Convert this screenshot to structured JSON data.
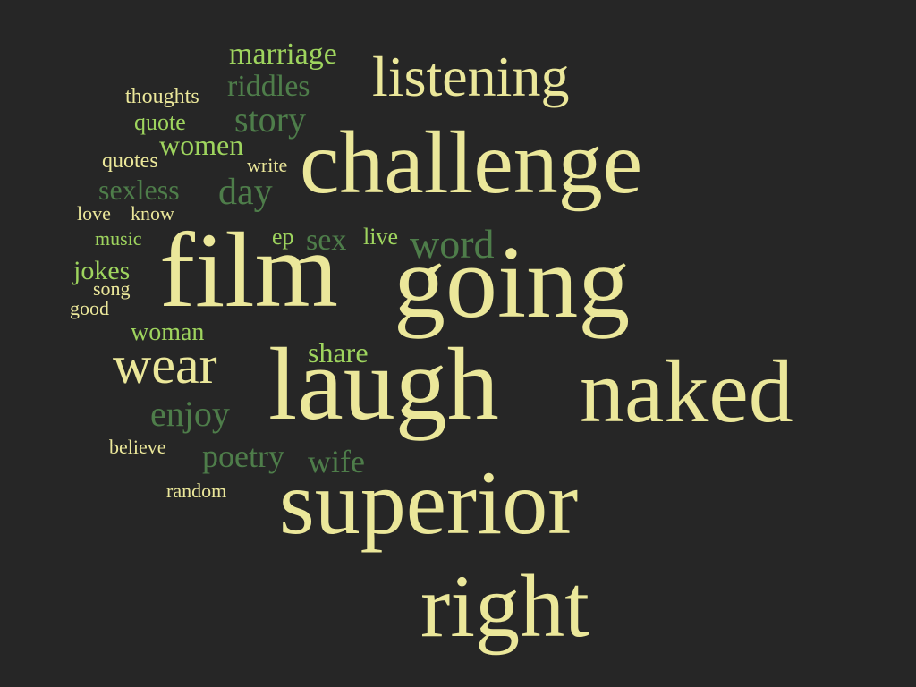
{
  "palette": {
    "background": "#262626",
    "pale_yellow": "#ebe79a",
    "light_green": "#9ed45e",
    "dark_green": "#4e7d4a"
  },
  "words": [
    {
      "text": "challenge",
      "color": "pale_yellow"
    },
    {
      "text": "going",
      "color": "pale_yellow"
    },
    {
      "text": "film",
      "color": "pale_yellow"
    },
    {
      "text": "laugh",
      "color": "pale_yellow"
    },
    {
      "text": "naked",
      "color": "pale_yellow"
    },
    {
      "text": "superior",
      "color": "pale_yellow"
    },
    {
      "text": "right",
      "color": "pale_yellow"
    },
    {
      "text": "listening",
      "color": "pale_yellow"
    },
    {
      "text": "wear",
      "color": "pale_yellow"
    },
    {
      "text": "word",
      "color": "dark_green"
    },
    {
      "text": "marriage",
      "color": "light_green"
    },
    {
      "text": "riddles",
      "color": "dark_green"
    },
    {
      "text": "story",
      "color": "dark_green"
    },
    {
      "text": "women",
      "color": "light_green"
    },
    {
      "text": "day",
      "color": "dark_green"
    },
    {
      "text": "sexless",
      "color": "dark_green"
    },
    {
      "text": "sex",
      "color": "dark_green"
    },
    {
      "text": "jokes",
      "color": "light_green"
    },
    {
      "text": "enjoy",
      "color": "dark_green"
    },
    {
      "text": "poetry",
      "color": "dark_green"
    },
    {
      "text": "wife",
      "color": "dark_green"
    },
    {
      "text": "share",
      "color": "light_green"
    },
    {
      "text": "woman",
      "color": "light_green"
    },
    {
      "text": "ep",
      "color": "light_green"
    },
    {
      "text": "live",
      "color": "light_green"
    },
    {
      "text": "thoughts",
      "color": "pale_yellow"
    },
    {
      "text": "quote",
      "color": "light_green"
    },
    {
      "text": "quotes",
      "color": "pale_yellow"
    },
    {
      "text": "write",
      "color": "pale_yellow"
    },
    {
      "text": "love",
      "color": "pale_yellow"
    },
    {
      "text": "know",
      "color": "pale_yellow"
    },
    {
      "text": "music",
      "color": "light_green"
    },
    {
      "text": "song",
      "color": "pale_yellow"
    },
    {
      "text": "good",
      "color": "pale_yellow"
    },
    {
      "text": "believe",
      "color": "pale_yellow"
    },
    {
      "text": "random",
      "color": "pale_yellow"
    }
  ]
}
